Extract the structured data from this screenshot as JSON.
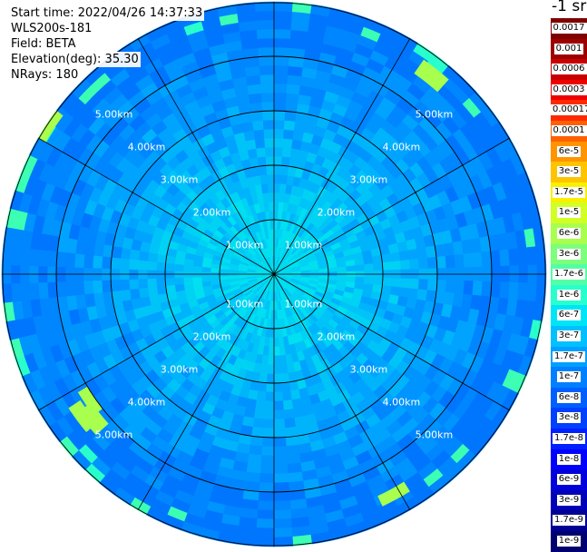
{
  "info": {
    "start_time": "Start time: 2022/04/26 14:37:33",
    "instrument": "WLS200s-181",
    "field": "Field: BETA",
    "elevation": "Elevation(deg): 35.30",
    "nrays": "NRays: 180"
  },
  "colorbar": {
    "unit": "-1 sr",
    "labels": [
      "0.0017",
      "0.001",
      "0.0006",
      "0.0003",
      "0.00017",
      "0.0001",
      "6e-5",
      "3e-5",
      "1.7e-5",
      "1e-5",
      "6e-6",
      "3e-6",
      "1.7e-6",
      "1e-6",
      "6e-7",
      "3e-7",
      "1.7e-7",
      "1e-7",
      "6e-8",
      "3e-8",
      "1.7e-8",
      "1e-8",
      "6e-9",
      "3e-9",
      "1.7e-9",
      "1e-9"
    ],
    "colors": [
      "#800000",
      "#9e0000",
      "#c80000",
      "#ee0000",
      "#ff2a00",
      "#ff6000",
      "#ff9400",
      "#ffc400",
      "#f8f000",
      "#d2ff24",
      "#a8ff4e",
      "#7cff7a",
      "#52ffa4",
      "#28ffce",
      "#00e4f8",
      "#00c0ff",
      "#00a0ff",
      "#0080ff",
      "#0060ff",
      "#0040ff",
      "#0020ff",
      "#0000ff",
      "#0000dc",
      "#0000b8",
      "#000094",
      "#000070"
    ]
  },
  "chart_data": {
    "type": "heatmap",
    "projection": "polar (PPI scan)",
    "field": "BETA",
    "range_rings_km": [
      1,
      2,
      3,
      4,
      5
    ],
    "ring_labels": [
      "1.00km",
      "2.00km",
      "3.00km",
      "4.00km",
      "5.00km"
    ],
    "max_range_km": 5.0,
    "nrays": 180,
    "azimuth_spokes_deg": [
      0,
      30,
      60,
      90,
      120,
      150,
      180,
      210,
      240,
      270,
      300,
      330
    ],
    "value_range": [
      "1e-9",
      "0.0017"
    ],
    "scale": "log",
    "near_range_beta": "~1e-6 to 6e-7",
    "far_range_beta": "~3e-8 to 1e-8",
    "grid": true
  }
}
